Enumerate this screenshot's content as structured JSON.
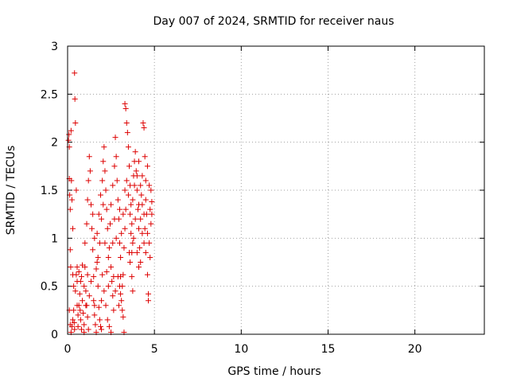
{
  "chart_data": {
    "type": "scatter",
    "title": "Day 007 of 2024, SRMTID for receiver naus",
    "xlabel": "GPS time / hours",
    "ylabel": "SRMTID / TECUs",
    "xlim": [
      0,
      24
    ],
    "ylim": [
      0,
      3
    ],
    "xticks": [
      0,
      5,
      10,
      15,
      20
    ],
    "xtick_labels": [
      "0",
      "5",
      "10",
      "15",
      "20"
    ],
    "yticks": [
      0,
      0.5,
      1,
      1.5,
      2,
      2.5,
      3
    ],
    "ytick_labels": [
      "0",
      "0.5",
      "1",
      "1.5",
      "2",
      "2.5",
      "3"
    ],
    "grid": true,
    "marker": "+",
    "color": "#dd0000",
    "series": [
      {
        "name": "SRMTID",
        "points": [
          [
            0.05,
            2.02
          ],
          [
            0.08,
            2.08
          ],
          [
            0.1,
            1.95
          ],
          [
            0.1,
            1.62
          ],
          [
            0.12,
            1.45
          ],
          [
            0.15,
            1.3
          ],
          [
            0.15,
            0.88
          ],
          [
            0.18,
            0.7
          ],
          [
            0.2,
            2.12
          ],
          [
            0.22,
            1.6
          ],
          [
            0.25,
            1.4
          ],
          [
            0.3,
            1.1
          ],
          [
            0.3,
            0.62
          ],
          [
            0.35,
            0.5
          ],
          [
            0.38,
            0.12
          ],
          [
            0.4,
            0.05
          ],
          [
            0.4,
            2.72
          ],
          [
            0.42,
            2.45
          ],
          [
            0.45,
            2.2
          ],
          [
            0.5,
            1.5
          ],
          [
            0.5,
            0.62
          ],
          [
            0.55,
            0.55
          ],
          [
            0.55,
            0.3
          ],
          [
            0.6,
            0.2
          ],
          [
            0.6,
            0.08
          ],
          [
            0.65,
            0.65
          ],
          [
            0.7,
            0.42
          ],
          [
            0.72,
            0.25
          ],
          [
            0.75,
            0.15
          ],
          [
            0.8,
            0.05
          ],
          [
            0.8,
            0.6
          ],
          [
            0.85,
            0.35
          ],
          [
            0.9,
            0.22
          ],
          [
            0.95,
            0.1
          ],
          [
            0.95,
            0.02
          ],
          [
            1.0,
            0.7
          ],
          [
            1.05,
            0.45
          ],
          [
            1.1,
            0.3
          ],
          [
            1.15,
            0.18
          ],
          [
            1.2,
            0.05
          ],
          [
            1.0,
            0.95
          ],
          [
            1.1,
            1.15
          ],
          [
            1.15,
            1.4
          ],
          [
            1.2,
            1.6
          ],
          [
            1.25,
            1.85
          ],
          [
            1.3,
            1.7
          ],
          [
            1.35,
            1.35
          ],
          [
            1.4,
            1.1
          ],
          [
            1.45,
            0.88
          ],
          [
            1.5,
            0.6
          ],
          [
            1.5,
            0.35
          ],
          [
            1.55,
            0.2
          ],
          [
            1.6,
            0.1
          ],
          [
            1.65,
            0.02
          ],
          [
            1.7,
            0.75
          ],
          [
            1.75,
            0.5
          ],
          [
            1.8,
            0.28
          ],
          [
            1.85,
            0.15
          ],
          [
            1.9,
            0.08
          ],
          [
            1.95,
            0.05
          ],
          [
            1.7,
            1.05
          ],
          [
            1.8,
            1.25
          ],
          [
            1.9,
            1.45
          ],
          [
            2.0,
            1.6
          ],
          [
            2.05,
            1.8
          ],
          [
            2.1,
            1.95
          ],
          [
            2.15,
            1.7
          ],
          [
            2.2,
            1.5
          ],
          [
            2.25,
            1.3
          ],
          [
            2.3,
            1.1
          ],
          [
            2.0,
            0.62
          ],
          [
            2.1,
            0.45
          ],
          [
            2.2,
            0.3
          ],
          [
            2.3,
            0.15
          ],
          [
            2.4,
            0.08
          ],
          [
            2.4,
            0.9
          ],
          [
            2.5,
            0.7
          ],
          [
            2.55,
            0.55
          ],
          [
            2.6,
            0.4
          ],
          [
            2.65,
            0.25
          ],
          [
            2.5,
            1.35
          ],
          [
            2.6,
            1.55
          ],
          [
            2.7,
            1.75
          ],
          [
            2.75,
            2.05
          ],
          [
            2.8,
            1.85
          ],
          [
            2.85,
            1.6
          ],
          [
            2.9,
            1.4
          ],
          [
            2.95,
            1.2
          ],
          [
            3.0,
            0.95
          ],
          [
            3.05,
            0.8
          ],
          [
            2.9,
            0.6
          ],
          [
            3.0,
            0.5
          ],
          [
            3.05,
            0.42
          ],
          [
            3.1,
            0.35
          ],
          [
            3.15,
            0.25
          ],
          [
            3.2,
            0.18
          ],
          [
            3.2,
            0.62
          ],
          [
            3.25,
            0.9
          ],
          [
            3.3,
            1.1
          ],
          [
            3.35,
            1.3
          ],
          [
            3.3,
            2.4
          ],
          [
            3.35,
            2.35
          ],
          [
            3.4,
            2.2
          ],
          [
            3.45,
            2.1
          ],
          [
            3.5,
            1.95
          ],
          [
            3.55,
            1.75
          ],
          [
            3.6,
            1.55
          ],
          [
            3.65,
            1.35
          ],
          [
            3.7,
            1.15
          ],
          [
            3.75,
            0.95
          ],
          [
            3.6,
            0.75
          ],
          [
            3.7,
            0.6
          ],
          [
            3.75,
            0.45
          ],
          [
            3.8,
            1.65
          ],
          [
            3.85,
            1.8
          ],
          [
            3.9,
            1.9
          ],
          [
            3.95,
            1.7
          ],
          [
            4.0,
            1.5
          ],
          [
            4.05,
            1.3
          ],
          [
            4.1,
            1.1
          ],
          [
            4.0,
            0.85
          ],
          [
            4.1,
            0.7
          ],
          [
            4.15,
            0.9
          ],
          [
            4.2,
            1.2
          ],
          [
            4.25,
            1.45
          ],
          [
            4.3,
            1.65
          ],
          [
            4.35,
            2.2
          ],
          [
            4.4,
            2.15
          ],
          [
            4.45,
            1.85
          ],
          [
            4.5,
            1.6
          ],
          [
            4.5,
            1.4
          ],
          [
            4.55,
            1.25
          ],
          [
            4.6,
            1.05
          ],
          [
            4.6,
            0.62
          ],
          [
            4.65,
            0.42
          ],
          [
            4.65,
            0.35
          ],
          [
            4.7,
            1.55
          ],
          [
            4.75,
            1.3
          ],
          [
            4.8,
            1.5
          ],
          [
            4.85,
            1.25
          ],
          [
            4.7,
            0.95
          ],
          [
            4.75,
            0.8
          ],
          [
            4.8,
            1.15
          ],
          [
            4.85,
            1.38
          ],
          [
            4.6,
            1.75
          ],
          [
            4.5,
            0.85
          ],
          [
            4.4,
            0.95
          ],
          [
            4.3,
            1.05
          ],
          [
            4.2,
            0.75
          ],
          [
            4.1,
            1.35
          ],
          [
            3.9,
            1.2
          ],
          [
            3.8,
            1.0
          ],
          [
            3.7,
            0.85
          ],
          [
            3.6,
            1.25
          ],
          [
            3.5,
            1.45
          ],
          [
            3.4,
            1.6
          ],
          [
            3.3,
            1.5
          ],
          [
            3.2,
            1.25
          ],
          [
            3.1,
            1.05
          ],
          [
            3.0,
            1.3
          ],
          [
            2.8,
            1.0
          ],
          [
            2.7,
            1.2
          ],
          [
            2.6,
            0.95
          ],
          [
            2.45,
            1.15
          ],
          [
            2.35,
            0.8
          ],
          [
            2.25,
            0.65
          ],
          [
            2.15,
            0.95
          ],
          [
            2.05,
            1.35
          ],
          [
            1.95,
            1.2
          ],
          [
            1.85,
            0.95
          ],
          [
            1.75,
            0.8
          ],
          [
            1.65,
            0.68
          ],
          [
            1.55,
            1.0
          ],
          [
            1.45,
            1.25
          ],
          [
            1.35,
            0.55
          ],
          [
            1.25,
            0.4
          ],
          [
            1.15,
            0.62
          ],
          [
            1.05,
            0.3
          ],
          [
            0.95,
            0.5
          ],
          [
            0.85,
            0.72
          ],
          [
            0.75,
            0.55
          ],
          [
            0.65,
            0.3
          ],
          [
            0.55,
            0.7
          ],
          [
            0.45,
            0.45
          ],
          [
            0.35,
            0.25
          ],
          [
            0.3,
            0.15
          ],
          [
            0.25,
            0.08
          ],
          [
            0.2,
            0.02
          ],
          [
            0.15,
            0.1
          ],
          [
            0.1,
            0.25
          ],
          [
            3.25,
            0.02
          ],
          [
            2.5,
            0.02
          ],
          [
            1.55,
            0.3
          ],
          [
            1.95,
            0.35
          ],
          [
            2.35,
            0.5
          ],
          [
            2.75,
            0.45
          ],
          [
            3.15,
            0.5
          ],
          [
            3.05,
            0.6
          ],
          [
            2.95,
            0.3
          ],
          [
            2.65,
            0.6
          ],
          [
            4.0,
            1.65
          ],
          [
            4.1,
            1.8
          ],
          [
            4.2,
            1.55
          ],
          [
            4.3,
            1.35
          ],
          [
            4.4,
            1.25
          ],
          [
            4.45,
            1.1
          ],
          [
            3.85,
            1.55
          ],
          [
            3.75,
            1.4
          ],
          [
            3.65,
            1.05
          ],
          [
            3.55,
            0.85
          ]
        ]
      }
    ]
  }
}
